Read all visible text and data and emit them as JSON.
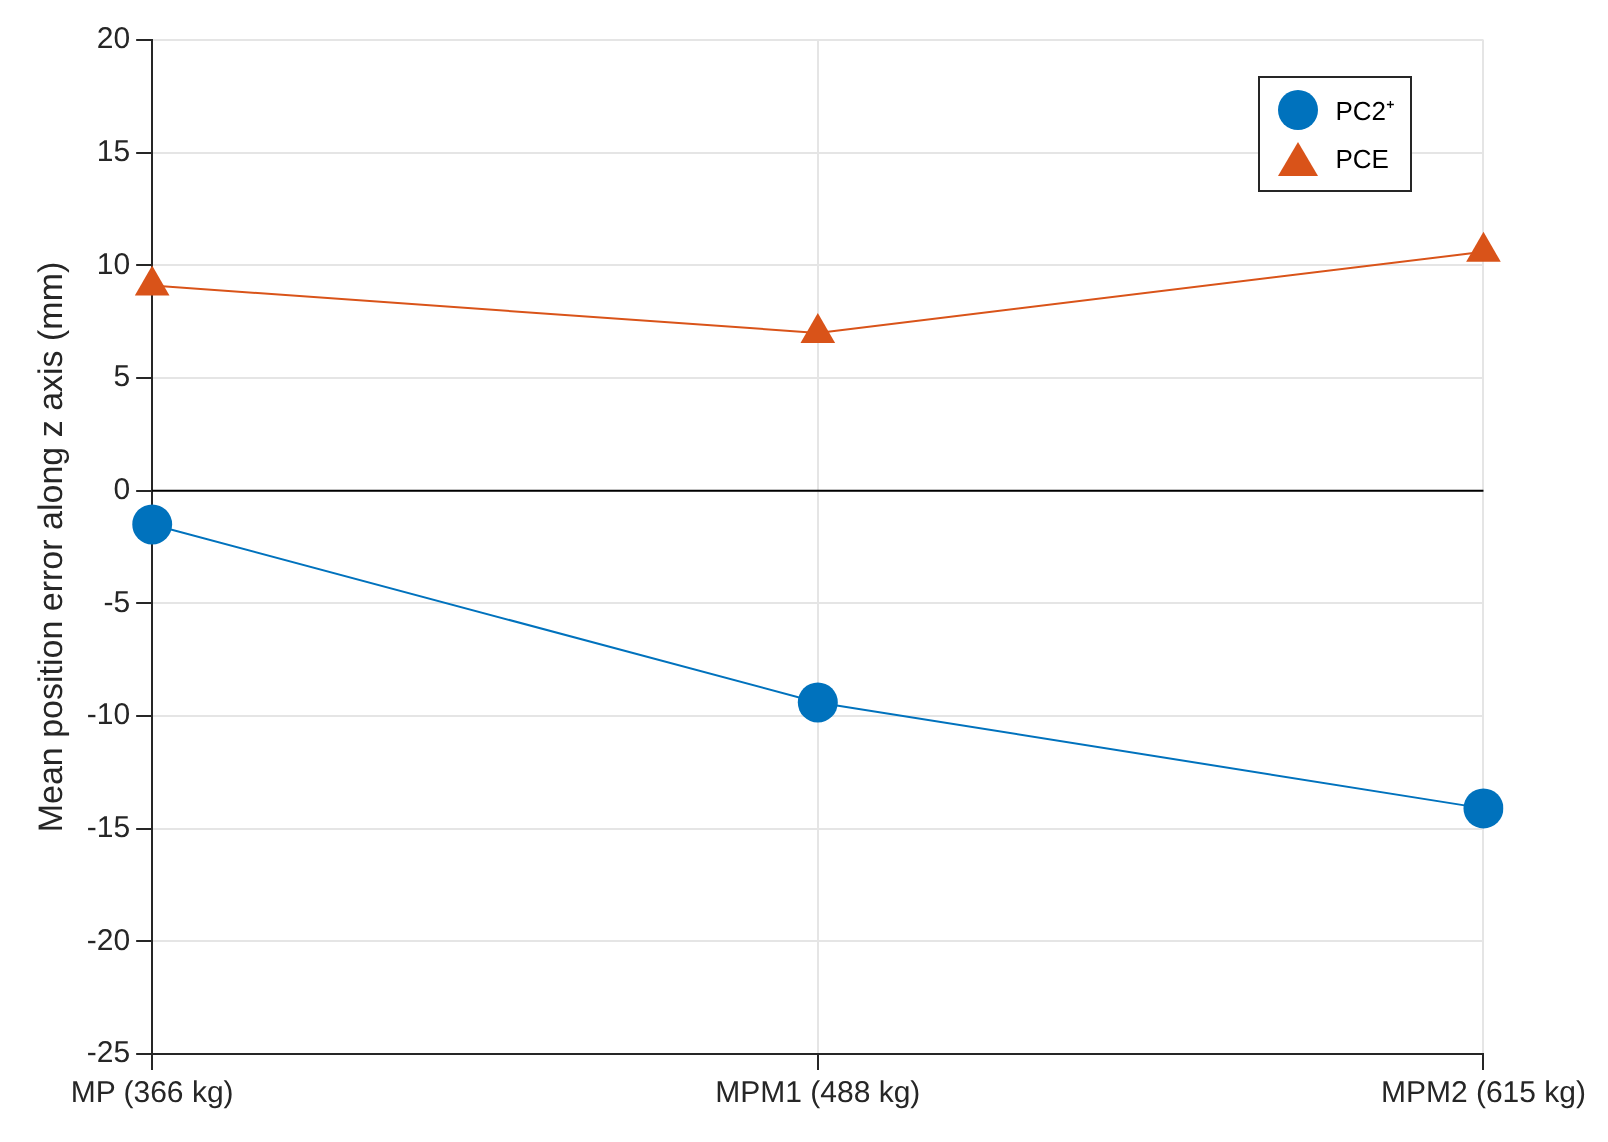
{
  "chart_data": {
    "type": "line",
    "ylabel": "Mean position error along z axis (mm)",
    "categories": [
      "MP (366 kg)",
      "MPM1 (488 kg)",
      "MPM2 (615 kg)"
    ],
    "series": [
      {
        "name": "PC2⁺",
        "color": "#0072bd",
        "values": [
          -1.5,
          -9.4,
          -14.1
        ],
        "marker": "circle"
      },
      {
        "name": "PCE",
        "color": "#d95319",
        "values": [
          9.1,
          7.0,
          10.6
        ],
        "marker": "triangle"
      }
    ],
    "ylim": [
      -25,
      20
    ],
    "yticks": [
      -25,
      -20,
      -15,
      -10,
      -5,
      0,
      5,
      10,
      15,
      20
    ],
    "grid": true,
    "legend": "top right",
    "ref_lines": [
      {
        "axis": "y",
        "value": 0,
        "color": "#000000"
      }
    ]
  }
}
